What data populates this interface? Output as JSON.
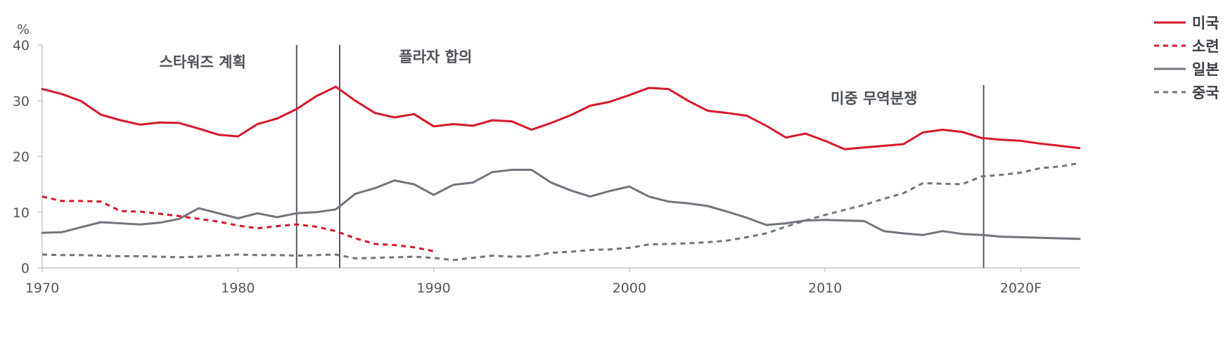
{
  "chart_data": {
    "type": "line",
    "y_unit": "%",
    "xlim": [
      1970,
      2023
    ],
    "ylim": [
      0,
      40
    ],
    "y_ticks": [
      0,
      10,
      20,
      30,
      40
    ],
    "x_ticks": [
      {
        "value": 1970,
        "label": "1970"
      },
      {
        "value": 1980,
        "label": "1980"
      },
      {
        "value": 1990,
        "label": "1990"
      },
      {
        "value": 2000,
        "label": "2000"
      },
      {
        "value": 2010,
        "label": "2010"
      },
      {
        "value": 2020,
        "label": "2020F"
      }
    ],
    "series": [
      {
        "name": "미국",
        "color": "#d7182a",
        "style": "solid",
        "points": [
          [
            1970,
            32.1
          ],
          [
            1971,
            31.2
          ],
          [
            1972,
            29.9
          ],
          [
            1973,
            27.5
          ],
          [
            1974,
            26.5
          ],
          [
            1975,
            25.7
          ],
          [
            1976,
            26.1
          ],
          [
            1977,
            26.0
          ],
          [
            1978,
            25.0
          ],
          [
            1979,
            23.9
          ],
          [
            1980,
            23.6
          ],
          [
            1981,
            25.8
          ],
          [
            1982,
            26.8
          ],
          [
            1983,
            28.5
          ],
          [
            1984,
            30.8
          ],
          [
            1985,
            32.5
          ],
          [
            1986,
            30.0
          ],
          [
            1987,
            27.8
          ],
          [
            1988,
            27.0
          ],
          [
            1989,
            27.6
          ],
          [
            1990,
            25.4
          ],
          [
            1991,
            25.8
          ],
          [
            1992,
            25.5
          ],
          [
            1993,
            26.5
          ],
          [
            1994,
            26.3
          ],
          [
            1995,
            24.8
          ],
          [
            1996,
            26.0
          ],
          [
            1997,
            27.4
          ],
          [
            1998,
            29.1
          ],
          [
            1999,
            29.8
          ],
          [
            2000,
            31.0
          ],
          [
            2001,
            32.3
          ],
          [
            2002,
            32.1
          ],
          [
            2003,
            30.0
          ],
          [
            2004,
            28.2
          ],
          [
            2005,
            27.8
          ],
          [
            2006,
            27.3
          ],
          [
            2007,
            25.5
          ],
          [
            2008,
            23.4
          ],
          [
            2009,
            24.1
          ],
          [
            2010,
            22.8
          ],
          [
            2011,
            21.3
          ],
          [
            2012,
            21.6
          ],
          [
            2013,
            21.9
          ],
          [
            2014,
            22.2
          ],
          [
            2015,
            24.3
          ],
          [
            2016,
            24.8
          ],
          [
            2017,
            24.4
          ],
          [
            2018,
            23.3
          ],
          [
            2019,
            23.0
          ],
          [
            2020,
            22.8
          ],
          [
            2021,
            22.3
          ],
          [
            2022,
            21.9
          ],
          [
            2023,
            21.5
          ]
        ]
      },
      {
        "name": "소련",
        "color": "#d7182a",
        "style": "dashed",
        "points": [
          [
            1970,
            12.8
          ],
          [
            1971,
            12.0
          ],
          [
            1972,
            12.0
          ],
          [
            1973,
            11.9
          ],
          [
            1974,
            10.2
          ],
          [
            1975,
            10.1
          ],
          [
            1976,
            9.7
          ],
          [
            1977,
            9.3
          ],
          [
            1978,
            8.8
          ],
          [
            1979,
            8.3
          ],
          [
            1980,
            7.6
          ],
          [
            1981,
            7.1
          ],
          [
            1982,
            7.5
          ],
          [
            1983,
            7.8
          ],
          [
            1984,
            7.4
          ],
          [
            1985,
            6.6
          ],
          [
            1986,
            5.3
          ],
          [
            1987,
            4.3
          ],
          [
            1988,
            4.1
          ],
          [
            1989,
            3.7
          ],
          [
            1990,
            3.0
          ]
        ]
      },
      {
        "name": "일본",
        "color": "#71757c",
        "style": "solid",
        "points": [
          [
            1970,
            6.3
          ],
          [
            1971,
            6.4
          ],
          [
            1972,
            7.3
          ],
          [
            1973,
            8.2
          ],
          [
            1974,
            8.0
          ],
          [
            1975,
            7.8
          ],
          [
            1976,
            8.1
          ],
          [
            1977,
            8.8
          ],
          [
            1978,
            10.7
          ],
          [
            1979,
            9.8
          ],
          [
            1980,
            8.9
          ],
          [
            1981,
            9.8
          ],
          [
            1982,
            9.1
          ],
          [
            1983,
            9.8
          ],
          [
            1984,
            10.0
          ],
          [
            1985,
            10.5
          ],
          [
            1986,
            13.3
          ],
          [
            1987,
            14.3
          ],
          [
            1988,
            15.7
          ],
          [
            1989,
            15.0
          ],
          [
            1990,
            13.1
          ],
          [
            1991,
            14.9
          ],
          [
            1992,
            15.3
          ],
          [
            1993,
            17.2
          ],
          [
            1994,
            17.6
          ],
          [
            1995,
            17.6
          ],
          [
            1996,
            15.3
          ],
          [
            1997,
            13.9
          ],
          [
            1998,
            12.8
          ],
          [
            1999,
            13.8
          ],
          [
            2000,
            14.6
          ],
          [
            2001,
            12.8
          ],
          [
            2002,
            11.9
          ],
          [
            2003,
            11.6
          ],
          [
            2004,
            11.1
          ],
          [
            2005,
            10.1
          ],
          [
            2006,
            9.0
          ],
          [
            2007,
            7.7
          ],
          [
            2008,
            8.0
          ],
          [
            2009,
            8.5
          ],
          [
            2010,
            8.6
          ],
          [
            2011,
            8.5
          ],
          [
            2012,
            8.4
          ],
          [
            2013,
            6.6
          ],
          [
            2014,
            6.2
          ],
          [
            2015,
            5.9
          ],
          [
            2016,
            6.6
          ],
          [
            2017,
            6.1
          ],
          [
            2018,
            5.9
          ],
          [
            2019,
            5.6
          ],
          [
            2020,
            5.5
          ],
          [
            2021,
            5.4
          ],
          [
            2022,
            5.3
          ],
          [
            2023,
            5.2
          ]
        ]
      },
      {
        "name": "중국",
        "color": "#71757c",
        "style": "dashed",
        "points": [
          [
            1970,
            2.4
          ],
          [
            1971,
            2.3
          ],
          [
            1972,
            2.3
          ],
          [
            1973,
            2.2
          ],
          [
            1974,
            2.1
          ],
          [
            1975,
            2.1
          ],
          [
            1976,
            2.0
          ],
          [
            1977,
            1.9
          ],
          [
            1978,
            2.0
          ],
          [
            1979,
            2.2
          ],
          [
            1980,
            2.4
          ],
          [
            1981,
            2.3
          ],
          [
            1982,
            2.3
          ],
          [
            1983,
            2.2
          ],
          [
            1984,
            2.3
          ],
          [
            1985,
            2.4
          ],
          [
            1986,
            1.7
          ],
          [
            1987,
            1.8
          ],
          [
            1988,
            1.9
          ],
          [
            1989,
            2.0
          ],
          [
            1990,
            1.8
          ],
          [
            1991,
            1.4
          ],
          [
            1992,
            1.8
          ],
          [
            1993,
            2.2
          ],
          [
            1994,
            2.0
          ],
          [
            1995,
            2.1
          ],
          [
            1996,
            2.7
          ],
          [
            1997,
            2.9
          ],
          [
            1998,
            3.2
          ],
          [
            1999,
            3.3
          ],
          [
            2000,
            3.6
          ],
          [
            2001,
            4.2
          ],
          [
            2002,
            4.3
          ],
          [
            2003,
            4.4
          ],
          [
            2004,
            4.6
          ],
          [
            2005,
            4.9
          ],
          [
            2006,
            5.5
          ],
          [
            2007,
            6.2
          ],
          [
            2008,
            7.4
          ],
          [
            2009,
            8.5
          ],
          [
            2010,
            9.5
          ],
          [
            2011,
            10.4
          ],
          [
            2012,
            11.3
          ],
          [
            2013,
            12.4
          ],
          [
            2014,
            13.4
          ],
          [
            2015,
            15.2
          ],
          [
            2016,
            15.1
          ],
          [
            2017,
            15.0
          ],
          [
            2018,
            16.4
          ],
          [
            2019,
            16.7
          ],
          [
            2020,
            17.1
          ],
          [
            2021,
            17.9
          ],
          [
            2022,
            18.2
          ],
          [
            2023,
            18.8
          ]
        ]
      }
    ],
    "annotations": [
      {
        "text": "스타워즈 계획",
        "x": 1978.2,
        "y": 36.0,
        "line_x": 1983
      },
      {
        "text": "플라자 합의",
        "x": 1990.1,
        "y": 37.0,
        "line_x": 1985.2
      },
      {
        "text": "미중 무역분쟁",
        "x": 2012.5,
        "y": 29.5,
        "line_x": 2018.1
      }
    ]
  }
}
